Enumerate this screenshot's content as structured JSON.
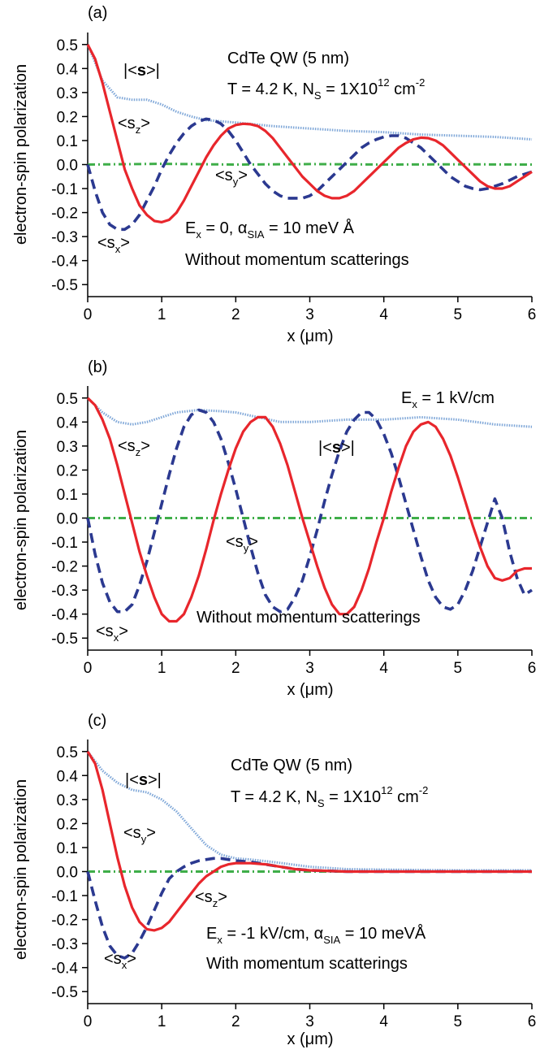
{
  "colors": {
    "sz": "#e8262c",
    "sx": "#2b3990",
    "s_abs": "#7fa7d8",
    "sy": "#3fae49",
    "axis": "#000000"
  },
  "chart_data": [
    {
      "type": "line",
      "panel_label": "(a)",
      "xlabel": "x (μm)",
      "ylabel": "electron-spin polarization",
      "xlim": [
        0,
        6
      ],
      "ylim": [
        -0.55,
        0.55
      ],
      "x_ticks": [
        0,
        1,
        2,
        3,
        4,
        5,
        6
      ],
      "y_ticks": [
        -0.5,
        -0.4,
        -0.3,
        -0.2,
        -0.1,
        0.0,
        0.1,
        0.2,
        0.3,
        0.4,
        0.5
      ],
      "y_tick_labels": [
        "-0.5",
        "-0.4",
        "-0.3",
        "-0.2",
        "-0.1",
        "0.0",
        "0.1",
        "0.2",
        "0.3",
        "0.4",
        "0.5"
      ],
      "annotations": [
        "CdTe QW (5 nm)",
        "T = 4.2 K, N_S = 1X10^12 cm^-2",
        "E_x = 0, α_SIA = 10 meV Å",
        "Without momentum scatterings"
      ],
      "series": [
        {
          "name": "|<s>|",
          "style": "dotted",
          "x": [
            0,
            0.2,
            0.4,
            0.6,
            0.8,
            1.0,
            1.2,
            1.4,
            1.6,
            1.8,
            2.0,
            2.5,
            3.0,
            3.5,
            4.0,
            4.5,
            5.0,
            5.5,
            6.0
          ],
          "y": [
            0.5,
            0.35,
            0.28,
            0.27,
            0.27,
            0.25,
            0.22,
            0.2,
            0.185,
            0.18,
            0.175,
            0.16,
            0.15,
            0.14,
            0.135,
            0.125,
            0.12,
            0.115,
            0.105
          ]
        },
        {
          "name": "<s_z>",
          "style": "solid",
          "x": [
            0,
            0.1,
            0.2,
            0.3,
            0.4,
            0.5,
            0.6,
            0.7,
            0.8,
            0.9,
            1.0,
            1.1,
            1.2,
            1.3,
            1.4,
            1.5,
            1.6,
            1.7,
            1.8,
            1.9,
            2.0,
            2.1,
            2.2,
            2.3,
            2.4,
            2.5,
            2.6,
            2.7,
            2.8,
            2.9,
            3.0,
            3.1,
            3.2,
            3.3,
            3.4,
            3.5,
            3.6,
            3.7,
            3.8,
            3.9,
            4.0,
            4.1,
            4.2,
            4.3,
            4.4,
            4.5,
            4.6,
            4.7,
            4.8,
            4.9,
            5.0,
            5.1,
            5.2,
            5.3,
            5.4,
            5.5,
            5.6,
            5.7,
            5.8,
            5.9,
            6.0
          ],
          "y": [
            0.5,
            0.44,
            0.34,
            0.22,
            0.1,
            -0.02,
            -0.1,
            -0.17,
            -0.21,
            -0.235,
            -0.24,
            -0.23,
            -0.2,
            -0.15,
            -0.09,
            -0.03,
            0.03,
            0.08,
            0.12,
            0.15,
            0.165,
            0.17,
            0.168,
            0.16,
            0.14,
            0.11,
            0.07,
            0.03,
            -0.01,
            -0.05,
            -0.08,
            -0.11,
            -0.13,
            -0.14,
            -0.14,
            -0.13,
            -0.11,
            -0.08,
            -0.05,
            -0.02,
            0.01,
            0.04,
            0.07,
            0.09,
            0.105,
            0.112,
            0.11,
            0.1,
            0.08,
            0.05,
            0.02,
            -0.01,
            -0.04,
            -0.07,
            -0.09,
            -0.1,
            -0.1,
            -0.09,
            -0.07,
            -0.05,
            -0.03
          ]
        },
        {
          "name": "<s_x>",
          "style": "dashed",
          "x": [
            0,
            0.1,
            0.2,
            0.3,
            0.4,
            0.5,
            0.6,
            0.7,
            0.8,
            0.9,
            1.0,
            1.1,
            1.2,
            1.3,
            1.4,
            1.5,
            1.6,
            1.7,
            1.8,
            1.9,
            2.0,
            2.1,
            2.2,
            2.3,
            2.4,
            2.5,
            2.6,
            2.7,
            2.8,
            2.9,
            3.0,
            3.1,
            3.2,
            3.3,
            3.4,
            3.5,
            3.6,
            3.7,
            3.8,
            3.9,
            4.0,
            4.1,
            4.2,
            4.3,
            4.4,
            4.5,
            4.6,
            4.7,
            4.8,
            4.9,
            5.0,
            5.1,
            5.2,
            5.3,
            5.4,
            5.5,
            5.6,
            5.7,
            5.8,
            5.9,
            6.0
          ],
          "y": [
            0.0,
            -0.11,
            -0.2,
            -0.25,
            -0.27,
            -0.27,
            -0.25,
            -0.21,
            -0.15,
            -0.09,
            -0.02,
            0.04,
            0.09,
            0.13,
            0.16,
            0.18,
            0.19,
            0.185,
            0.17,
            0.14,
            0.1,
            0.05,
            0.0,
            -0.04,
            -0.08,
            -0.11,
            -0.13,
            -0.14,
            -0.14,
            -0.14,
            -0.13,
            -0.11,
            -0.08,
            -0.05,
            -0.02,
            0.01,
            0.04,
            0.07,
            0.09,
            0.105,
            0.115,
            0.12,
            0.12,
            0.11,
            0.09,
            0.07,
            0.04,
            0.01,
            -0.02,
            -0.05,
            -0.07,
            -0.09,
            -0.1,
            -0.105,
            -0.1,
            -0.09,
            -0.08,
            -0.065,
            -0.05,
            -0.04,
            -0.03
          ]
        },
        {
          "name": "<s_y>",
          "style": "dashdot",
          "x": [
            0,
            1,
            2,
            3,
            4,
            5,
            6
          ],
          "y": [
            0.0,
            0.003,
            0.0,
            0.002,
            0.0,
            0.001,
            0.0
          ]
        }
      ],
      "labels": [
        "|<s>|",
        "<s_z>",
        "<s_y>",
        "<s_x>"
      ]
    },
    {
      "type": "line",
      "panel_label": "(b)",
      "xlabel": "x (μm)",
      "ylabel": "electron-spin polarization",
      "xlim": [
        0,
        6
      ],
      "ylim": [
        -0.55,
        0.55
      ],
      "x_ticks": [
        0,
        1,
        2,
        3,
        4,
        5,
        6
      ],
      "y_ticks": [
        -0.5,
        -0.4,
        -0.3,
        -0.2,
        -0.1,
        0.0,
        0.1,
        0.2,
        0.3,
        0.4,
        0.5
      ],
      "y_tick_labels": [
        "-0.5",
        "-0.4",
        "-0.3",
        "-0.2",
        "-0.1",
        "0.0",
        "0.1",
        "0.2",
        "0.3",
        "0.4",
        "0.5"
      ],
      "annotations": [
        "E_x = 1 kV/cm",
        "Without momentum scatterings"
      ],
      "series": [
        {
          "name": "|<s>|",
          "style": "dotted",
          "x": [
            0,
            0.2,
            0.4,
            0.6,
            0.8,
            1.0,
            1.2,
            1.5,
            1.8,
            2.0,
            2.3,
            2.6,
            3.0,
            3.5,
            4.0,
            4.5,
            5.0,
            5.5,
            6.0
          ],
          "y": [
            0.5,
            0.44,
            0.4,
            0.39,
            0.4,
            0.42,
            0.44,
            0.45,
            0.445,
            0.44,
            0.42,
            0.4,
            0.4,
            0.41,
            0.41,
            0.42,
            0.41,
            0.39,
            0.38
          ]
        },
        {
          "name": "<s_z>",
          "style": "solid",
          "x": [
            0,
            0.1,
            0.2,
            0.3,
            0.4,
            0.5,
            0.6,
            0.7,
            0.8,
            0.9,
            1.0,
            1.1,
            1.2,
            1.3,
            1.4,
            1.5,
            1.6,
            1.7,
            1.8,
            1.9,
            2.0,
            2.1,
            2.2,
            2.3,
            2.4,
            2.5,
            2.6,
            2.7,
            2.8,
            2.9,
            3.0,
            3.1,
            3.2,
            3.3,
            3.4,
            3.5,
            3.6,
            3.7,
            3.8,
            3.9,
            4.0,
            4.1,
            4.2,
            4.3,
            4.4,
            4.5,
            4.6,
            4.7,
            4.8,
            4.9,
            5.0,
            5.1,
            5.2,
            5.3,
            5.4,
            5.5,
            5.6,
            5.7,
            5.8,
            5.9,
            6.0
          ],
          "y": [
            0.5,
            0.47,
            0.41,
            0.33,
            0.22,
            0.1,
            -0.02,
            -0.14,
            -0.24,
            -0.33,
            -0.4,
            -0.43,
            -0.43,
            -0.4,
            -0.33,
            -0.24,
            -0.13,
            -0.01,
            0.1,
            0.2,
            0.29,
            0.36,
            0.4,
            0.42,
            0.42,
            0.38,
            0.31,
            0.22,
            0.11,
            0.0,
            -0.1,
            -0.2,
            -0.29,
            -0.36,
            -0.4,
            -0.4,
            -0.37,
            -0.3,
            -0.21,
            -0.1,
            0.0,
            0.11,
            0.21,
            0.3,
            0.36,
            0.39,
            0.4,
            0.38,
            0.33,
            0.26,
            0.17,
            0.07,
            -0.03,
            -0.12,
            -0.2,
            -0.25,
            -0.26,
            -0.25,
            -0.22,
            -0.21,
            -0.21
          ]
        },
        {
          "name": "<s_x>",
          "style": "dashed",
          "x": [
            0,
            0.1,
            0.2,
            0.3,
            0.4,
            0.5,
            0.6,
            0.7,
            0.8,
            0.9,
            1.0,
            1.1,
            1.2,
            1.3,
            1.4,
            1.5,
            1.6,
            1.7,
            1.8,
            1.9,
            2.0,
            2.1,
            2.2,
            2.3,
            2.4,
            2.5,
            2.6,
            2.7,
            2.8,
            2.9,
            3.0,
            3.1,
            3.2,
            3.3,
            3.4,
            3.5,
            3.6,
            3.7,
            3.8,
            3.9,
            4.0,
            4.1,
            4.2,
            4.3,
            4.4,
            4.5,
            4.6,
            4.7,
            4.8,
            4.9,
            5.0,
            5.1,
            5.2,
            5.3,
            5.4,
            5.5,
            5.6,
            5.7,
            5.8,
            5.9,
            6.0
          ],
          "y": [
            0.0,
            -0.15,
            -0.27,
            -0.35,
            -0.39,
            -0.39,
            -0.36,
            -0.28,
            -0.18,
            -0.06,
            0.06,
            0.18,
            0.29,
            0.38,
            0.43,
            0.45,
            0.44,
            0.4,
            0.33,
            0.23,
            0.12,
            0.0,
            -0.12,
            -0.23,
            -0.32,
            -0.37,
            -0.39,
            -0.38,
            -0.33,
            -0.26,
            -0.16,
            -0.05,
            0.07,
            0.18,
            0.28,
            0.36,
            0.41,
            0.44,
            0.44,
            0.41,
            0.35,
            0.27,
            0.17,
            0.06,
            -0.05,
            -0.16,
            -0.26,
            -0.33,
            -0.37,
            -0.38,
            -0.36,
            -0.3,
            -0.22,
            -0.12,
            -0.02,
            0.08,
            0.0,
            -0.14,
            -0.25,
            -0.32,
            -0.3
          ]
        },
        {
          "name": "<s_y>",
          "style": "dashdot",
          "x": [
            0,
            1,
            2,
            3,
            4,
            5,
            6
          ],
          "y": [
            0.0,
            0.0,
            0.0,
            0.0,
            0.0,
            0.0,
            0.0
          ]
        }
      ],
      "labels": [
        "<s_z>",
        "|<s>|",
        "<s_y>",
        "<s_x>"
      ]
    },
    {
      "type": "line",
      "panel_label": "(c)",
      "xlabel": "x (μm)",
      "ylabel": "electron-spin polarization",
      "xlim": [
        0,
        6
      ],
      "ylim": [
        -0.55,
        0.55
      ],
      "x_ticks": [
        0,
        1,
        2,
        3,
        4,
        5,
        6
      ],
      "y_ticks": [
        -0.5,
        -0.4,
        -0.3,
        -0.2,
        -0.1,
        0.0,
        0.1,
        0.2,
        0.3,
        0.4,
        0.5
      ],
      "y_tick_labels": [
        "-0.5",
        "-0.4",
        "-0.3",
        "-0.2",
        "-0.1",
        "0.0",
        "0.1",
        "0.2",
        "0.3",
        "0.4",
        "0.5"
      ],
      "annotations": [
        "CdTe QW (5 nm)",
        "T = 4.2 K, N_S = 1X10^12 cm^-2",
        "E_x = -1 kV/cm, α_SIA = 10 meVÅ",
        "With momentum scatterings"
      ],
      "series": [
        {
          "name": "|<s>|",
          "style": "dotted",
          "x": [
            0,
            0.2,
            0.4,
            0.6,
            0.8,
            1.0,
            1.2,
            1.4,
            1.6,
            1.8,
            2.0,
            2.2,
            2.5,
            3.0,
            3.5,
            4.0,
            5.0,
            6.0
          ],
          "y": [
            0.5,
            0.42,
            0.37,
            0.34,
            0.33,
            0.3,
            0.25,
            0.18,
            0.11,
            0.07,
            0.055,
            0.05,
            0.04,
            0.02,
            0.01,
            0.008,
            0.005,
            0.005
          ]
        },
        {
          "name": "<s_z>",
          "style": "solid",
          "x": [
            0,
            0.1,
            0.2,
            0.3,
            0.4,
            0.5,
            0.6,
            0.7,
            0.8,
            0.9,
            1.0,
            1.1,
            1.2,
            1.3,
            1.4,
            1.5,
            1.6,
            1.7,
            1.8,
            1.9,
            2.0,
            2.2,
            2.4,
            2.6,
            2.8,
            3.0,
            3.5,
            4.0,
            5.0,
            6.0
          ],
          "y": [
            0.5,
            0.45,
            0.34,
            0.2,
            0.06,
            -0.06,
            -0.15,
            -0.21,
            -0.24,
            -0.245,
            -0.235,
            -0.21,
            -0.17,
            -0.13,
            -0.09,
            -0.05,
            -0.02,
            0.0,
            0.02,
            0.03,
            0.035,
            0.035,
            0.03,
            0.02,
            0.01,
            0.005,
            0.0,
            0.0,
            0.0,
            0.0
          ]
        },
        {
          "name": "<s_x>",
          "style": "dashed",
          "x": [
            0,
            0.1,
            0.2,
            0.3,
            0.4,
            0.5,
            0.6,
            0.7,
            0.8,
            0.9,
            1.0,
            1.1,
            1.2,
            1.3,
            1.4,
            1.5,
            1.6,
            1.7,
            1.8,
            1.9,
            2.0,
            2.2,
            2.4,
            2.6,
            2.8,
            3.0,
            3.5,
            4.0,
            5.0,
            6.0
          ],
          "y": [
            0.0,
            -0.12,
            -0.23,
            -0.31,
            -0.35,
            -0.36,
            -0.34,
            -0.29,
            -0.23,
            -0.16,
            -0.09,
            -0.03,
            0.0,
            0.02,
            0.035,
            0.045,
            0.05,
            0.055,
            0.055,
            0.05,
            0.045,
            0.04,
            0.03,
            0.02,
            0.01,
            0.005,
            0.0,
            0.0,
            0.0,
            0.0
          ]
        },
        {
          "name": "<s_y>",
          "style": "dashdot",
          "x": [
            0,
            1,
            2,
            3,
            4,
            5,
            6
          ],
          "y": [
            0.0,
            0.0,
            0.0,
            0.0,
            0.0,
            0.0,
            0.0
          ]
        }
      ],
      "labels": [
        "|<s>|",
        "<s_y>",
        "<s_z>",
        "<s_x>"
      ]
    }
  ]
}
